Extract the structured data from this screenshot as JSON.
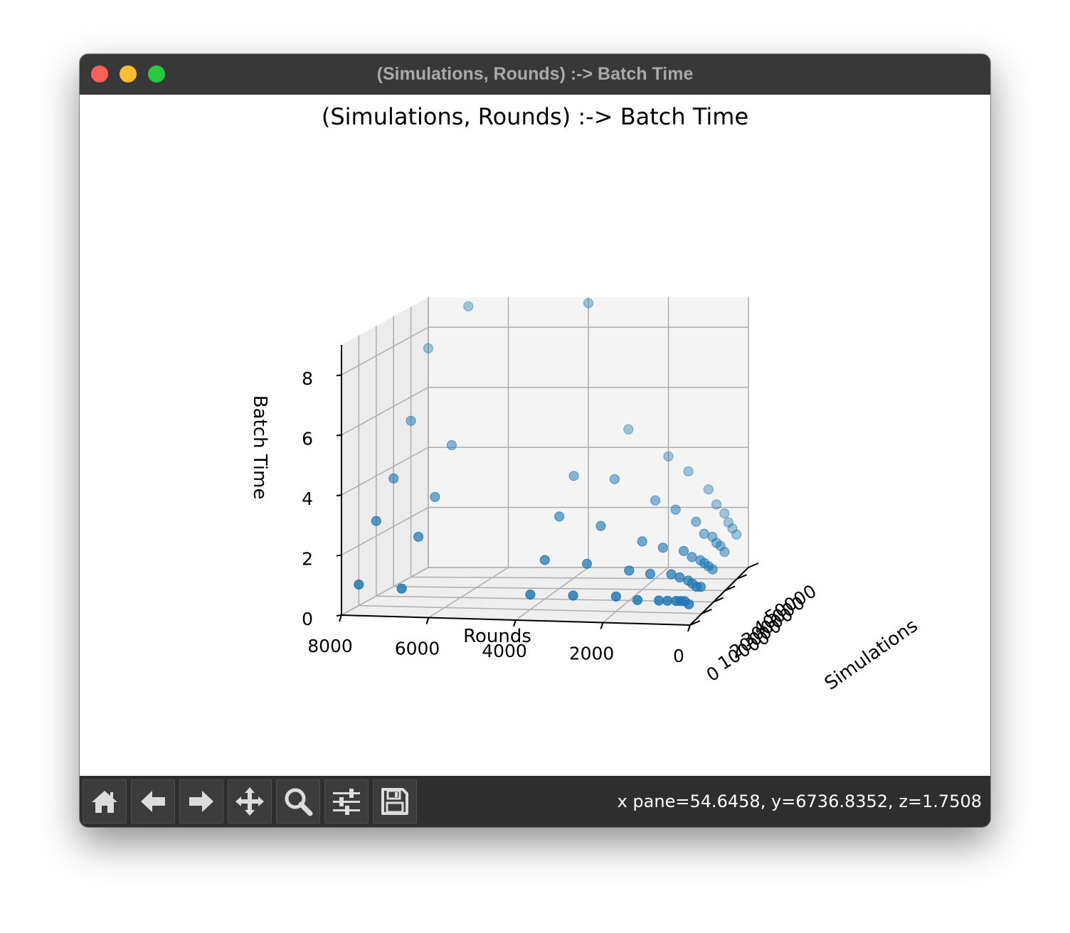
{
  "window": {
    "title": "(Simulations, Rounds) :-> Batch Time"
  },
  "toolbar": {
    "buttons": [
      {
        "name": "home-button",
        "icon": "home-icon"
      },
      {
        "name": "back-button",
        "icon": "arrow-left-icon"
      },
      {
        "name": "forward-button",
        "icon": "arrow-right-icon"
      },
      {
        "name": "pan-button",
        "icon": "move-icon"
      },
      {
        "name": "zoom-button",
        "icon": "magnifier-icon"
      },
      {
        "name": "configure-subplots-button",
        "icon": "sliders-icon"
      },
      {
        "name": "save-button",
        "icon": "floppy-disk-icon"
      }
    ],
    "status": "x pane=54.6458, y=6736.8352, z=1.7508"
  },
  "colors": {
    "marker": "#1f77b4",
    "pane": "#f2f2f2",
    "grid": "#b0b0b0",
    "titlebar": "#383838",
    "toolbar": "#2e2e2e"
  },
  "chart_data": {
    "type": "scatter",
    "projection": "3d",
    "title": "(Simulations, Rounds) :-> Batch Time",
    "xlabel": "Simulations",
    "ylabel": "Rounds",
    "zlabel": "Batch Time",
    "x_ticks": [
      "0",
      "10000",
      "20000",
      "30000",
      "40000",
      "50000"
    ],
    "y_ticks": [
      "8000",
      "6000",
      "4000",
      "2000",
      "0"
    ],
    "z_ticks": [
      "0",
      "2",
      "4",
      "6",
      "8"
    ],
    "xlim": [
      0,
      50000
    ],
    "ylim": [
      0,
      8000
    ],
    "zlim": [
      0,
      9
    ],
    "grid": true,
    "simulations": [
      10000,
      20000,
      30000,
      40000,
      50000
    ],
    "rounds": [
      8000,
      7000,
      4000,
      3000,
      2000,
      1500,
      1000,
      800,
      600,
      500,
      400,
      300
    ],
    "batch_time": [
      [
        0.7,
        2.5,
        3.6,
        5.2,
        7.3
      ],
      [
        0.6,
        2.0,
        3.0,
        4.4,
        8.7
      ],
      [
        0.5,
        1.3,
        2.4,
        3.4,
        8.8
      ],
      [
        0.5,
        1.2,
        2.1,
        3.3,
        4.6
      ],
      [
        0.5,
        1.0,
        1.6,
        2.6,
        3.7
      ],
      [
        0.4,
        0.9,
        1.4,
        2.3,
        3.2
      ],
      [
        0.4,
        0.9,
        1.3,
        1.9,
        2.6
      ],
      [
        0.4,
        0.8,
        1.1,
        1.5,
        2.1
      ],
      [
        0.4,
        0.7,
        1.0,
        1.4,
        1.8
      ],
      [
        0.4,
        0.6,
        0.9,
        1.2,
        1.5
      ],
      [
        0.4,
        0.5,
        0.8,
        1.1,
        1.3
      ],
      [
        0.3,
        0.5,
        0.7,
        0.9,
        1.1
      ]
    ]
  }
}
